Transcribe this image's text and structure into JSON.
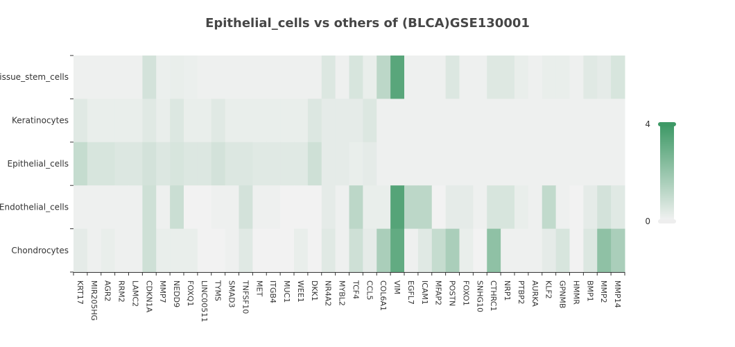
{
  "chart_data": {
    "type": "heatmap",
    "title": "Epithelial_cells vs others of (BLCA)GSE130001",
    "highlight_row": "Epithelial_cells",
    "highlight_color": "#e0272d",
    "color_scale": {
      "min": 0,
      "max": 4,
      "low_color": "#f2f2f2",
      "high_color": "#3e9966"
    },
    "visual_map_labels": {
      "max": "4",
      "min": "0"
    },
    "rows": [
      "Tissue_stem_cells",
      "Keratinocytes",
      "Epithelial_cells",
      "Endothelial_cells",
      "Chondrocytes"
    ],
    "columns": [
      "KRT17",
      "MIR205HG",
      "AGR2",
      "RRM2",
      "LAMC2",
      "CDKN1A",
      "MMP7",
      "NEDD9",
      "FOXQ1",
      "LINC00511",
      "TYMS",
      "SMAD3",
      "TNFSF10",
      "MET",
      "ITGB4",
      "MUC1",
      "WEE1",
      "DKK1",
      "NR4A2",
      "MYBL2",
      "TCF4",
      "CCL5",
      "COL6A1",
      "VIM",
      "EGFL7",
      "ICAM1",
      "MFAP2",
      "POSTN",
      "FOXO1",
      "SNHG10",
      "CTHRC1",
      "NRP1",
      "PTBP2",
      "AURKA",
      "KLF2",
      "GPNMB",
      "HMMR",
      "BMP1",
      "MMP2",
      "MMP14"
    ],
    "values": [
      [
        0.1,
        0.1,
        0.1,
        0.1,
        0.1,
        0.7,
        0.15,
        0.2,
        0.15,
        0.1,
        0.1,
        0.1,
        0.1,
        0.1,
        0.1,
        0.1,
        0.1,
        0.1,
        0.5,
        0.1,
        0.6,
        0.2,
        1.2,
        3.4,
        0.1,
        0.1,
        0.1,
        0.5,
        0.1,
        0.1,
        0.45,
        0.45,
        0.2,
        0.1,
        0.2,
        0.2,
        0.1,
        0.4,
        0.3,
        0.6
      ],
      [
        0.4,
        0.2,
        0.2,
        0.2,
        0.2,
        0.4,
        0.2,
        0.5,
        0.2,
        0.2,
        0.4,
        0.2,
        0.2,
        0.2,
        0.2,
        0.2,
        0.2,
        0.5,
        0.3,
        0.3,
        0.3,
        0.5,
        0.1,
        0.1,
        0.1,
        0.1,
        0.1,
        0.1,
        0.1,
        0.1,
        0.1,
        0.1,
        0.1,
        0.1,
        0.1,
        0.1,
        0.1,
        0.1,
        0.1,
        0.1
      ],
      [
        1.0,
        0.6,
        0.6,
        0.5,
        0.5,
        0.7,
        0.5,
        0.6,
        0.5,
        0.5,
        0.7,
        0.5,
        0.5,
        0.4,
        0.4,
        0.4,
        0.4,
        0.8,
        0.3,
        0.3,
        0.2,
        0.3,
        0.1,
        0.1,
        0.1,
        0.1,
        0.1,
        0.1,
        0.1,
        0.1,
        0.1,
        0.1,
        0.1,
        0.1,
        0.1,
        0.1,
        0.1,
        0.1,
        0.1,
        0.1
      ],
      [
        0.1,
        0.1,
        0.1,
        0.1,
        0.1,
        0.8,
        0.1,
        0.9,
        0.0,
        0.0,
        0.1,
        0.1,
        0.7,
        0.1,
        0.1,
        0.0,
        0.0,
        0.0,
        0.3,
        0.1,
        1.2,
        0.2,
        0.2,
        3.5,
        1.2,
        1.2,
        0.0,
        0.3,
        0.3,
        0.1,
        0.6,
        0.6,
        0.2,
        0.1,
        1.1,
        0.1,
        0.0,
        0.3,
        0.7,
        0.4
      ],
      [
        0.3,
        0.1,
        0.2,
        0.1,
        0.1,
        0.8,
        0.2,
        0.2,
        0.2,
        0.0,
        0.0,
        0.1,
        0.4,
        0.0,
        0.0,
        0.0,
        0.2,
        0.0,
        0.4,
        0.1,
        0.8,
        0.3,
        1.6,
        3.2,
        0.1,
        0.4,
        1.0,
        1.6,
        0.2,
        0.0,
        2.2,
        0.1,
        0.1,
        0.1,
        0.3,
        0.6,
        0.0,
        0.5,
        2.2,
        1.6
      ]
    ]
  }
}
